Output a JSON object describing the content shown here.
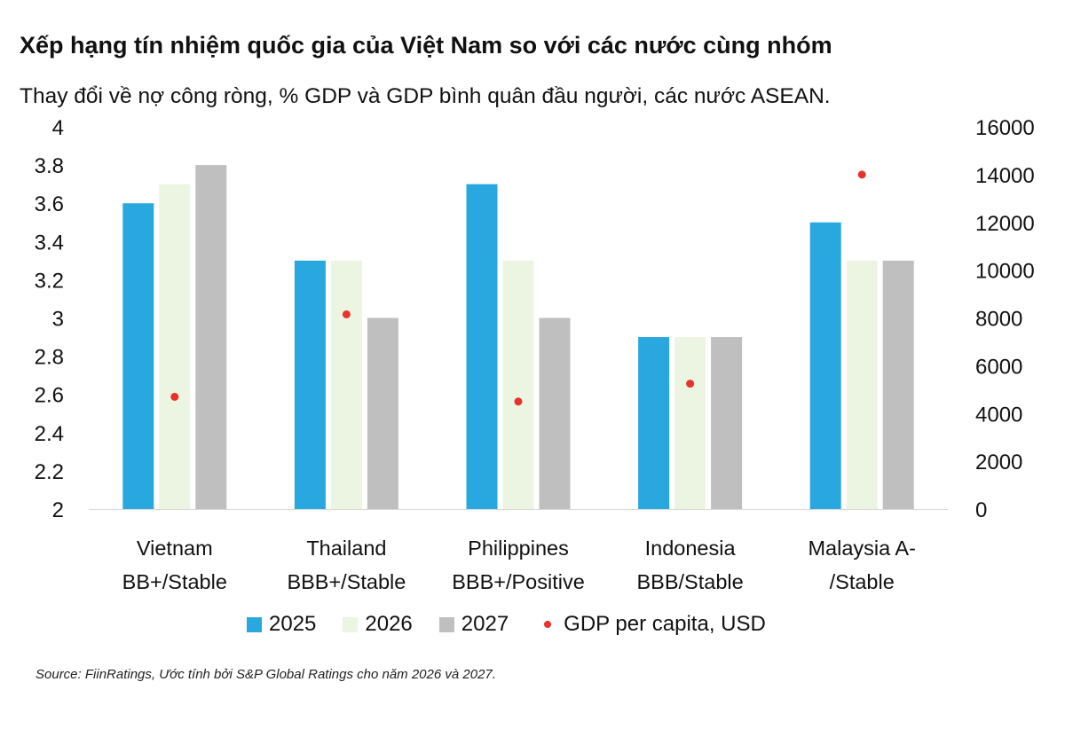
{
  "title": "Xếp hạng tín nhiệm quốc gia của Việt Nam so với các nước cùng nhóm",
  "subtitle": "Thay đổi về nợ công ròng, % GDP và GDP bình quân đầu người, các nước ASEAN.",
  "source": "Source: FiinRatings, Ước tính bởi S&P Global Ratings cho năm 2026 và 2027.",
  "chart_data": {
    "type": "bar",
    "categories": [
      [
        "Vietnam",
        "BB+/Stable"
      ],
      [
        "Thailand",
        "BBB+/Stable"
      ],
      [
        "Philippines",
        "BBB+/Positive"
      ],
      [
        "Indonesia",
        "BBB/Stable"
      ],
      [
        "Malaysia A-",
        "/Stable"
      ]
    ],
    "series": [
      {
        "name": "2025",
        "color": "#29a8e0",
        "values": [
          3.6,
          3.3,
          3.7,
          2.9,
          3.5
        ]
      },
      {
        "name": "2026",
        "color": "#ebf5e2",
        "values": [
          3.7,
          3.3,
          3.3,
          2.9,
          3.3
        ]
      },
      {
        "name": "2027",
        "color": "#bfbfbf",
        "values": [
          3.8,
          3.0,
          3.0,
          2.9,
          3.3
        ]
      }
    ],
    "secondary_series": {
      "name": "GDP per capita, USD",
      "type": "scatter",
      "color": "#e8322c",
      "values": [
        4700,
        8150,
        4500,
        5250,
        14000
      ]
    },
    "ylim": [
      2,
      4
    ],
    "yticks": [
      "2",
      "2.2",
      "2.4",
      "2.6",
      "2.8",
      "3",
      "3.2",
      "3.4",
      "3.6",
      "3.8",
      "4"
    ],
    "y2lim": [
      0,
      16000
    ],
    "y2ticks": [
      "0",
      "2000",
      "4000",
      "6000",
      "8000",
      "10000",
      "12000",
      "14000",
      "16000"
    ],
    "grid": false,
    "legend_position": "bottom"
  }
}
